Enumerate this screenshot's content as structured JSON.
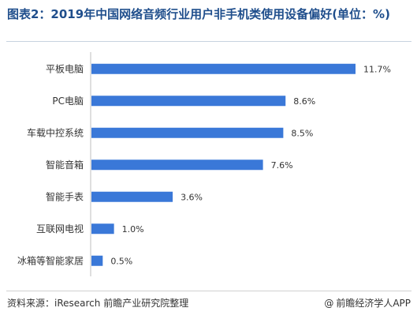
{
  "title": "图表2：2019年中国网络音频行业用户非手机类使用设备偏好(单位：%)",
  "footer": {
    "source": "资料来源：iResearch 前瞻产业研究院整理",
    "brand": "前瞻经济学人APP",
    "brand_icon": "at-icon"
  },
  "colors": {
    "bar": "#3a78d8",
    "axis": "#bfbfbf",
    "text": "#333333"
  },
  "chart_data": {
    "type": "bar",
    "orientation": "horizontal",
    "title": "图表2：2019年中国网络音频行业用户非手机类使用设备偏好(单位：%)",
    "xlabel": "",
    "ylabel": "",
    "xlim": [
      0,
      12
    ],
    "grid": false,
    "legend": "none",
    "categories": [
      "平板电脑",
      "PC电脑",
      "车载中控系统",
      "智能音箱",
      "智能手表",
      "互联网电视",
      "冰箱等智能家居"
    ],
    "values": [
      11.7,
      8.6,
      8.5,
      7.6,
      3.6,
      1.0,
      0.5
    ],
    "data_labels": [
      "11.7%",
      "8.6%",
      "8.5%",
      "7.6%",
      "3.6%",
      "1.0%",
      "0.5%"
    ]
  }
}
